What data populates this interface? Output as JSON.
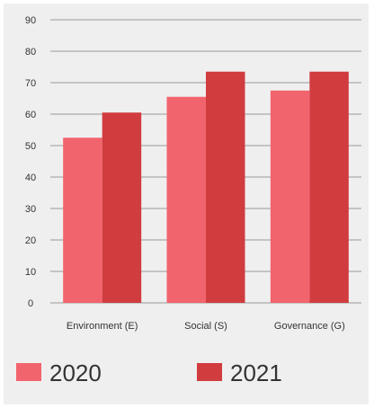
{
  "chart_data": {
    "type": "bar",
    "categories": [
      "Environment (E)",
      "Social (S)",
      "Governance (G)"
    ],
    "series": [
      {
        "name": "2020",
        "values": [
          52.5,
          65.5,
          67.5
        ],
        "color": "#f2646d"
      },
      {
        "name": "2021",
        "values": [
          60.5,
          73.5,
          73.5
        ],
        "color": "#d13c3f"
      }
    ],
    "yticks": [
      0,
      10,
      20,
      30,
      40,
      50,
      60,
      70,
      80,
      90
    ],
    "ylim": [
      0,
      90
    ],
    "grid": true,
    "legend": "bottom",
    "title": "",
    "xlabel": "",
    "ylabel": ""
  }
}
